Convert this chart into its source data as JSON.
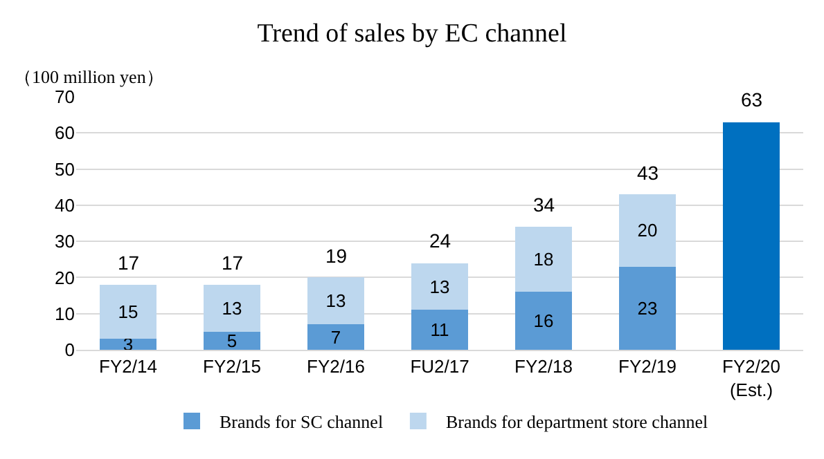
{
  "chart_data": {
    "type": "bar",
    "title": "Trend of sales by EC channel",
    "ylabel": "（100 million yen）",
    "categories": [
      "FY2/14",
      "FY2/15",
      "FY2/16",
      "FU2/17",
      "FY2/18",
      "FY2/19",
      "FY2/20\n(Est.)"
    ],
    "stacked": true,
    "series": [
      {
        "name": "Brands for SC channel",
        "color": "#5b9bd5",
        "colors": [
          null,
          null,
          null,
          null,
          null,
          null,
          "#0070c0"
        ],
        "values": [
          3,
          5,
          7,
          11,
          16,
          23,
          63
        ],
        "value_labels": [
          "3",
          "5",
          "7",
          "11",
          "16",
          "23",
          null
        ]
      },
      {
        "name": "Brands for department store channel",
        "color": "#bdd7ee",
        "values": [
          15,
          13,
          13,
          13,
          18,
          20,
          null
        ],
        "value_labels": [
          "15",
          "13",
          "13",
          "13",
          "18",
          "20",
          null
        ]
      }
    ],
    "totals": [
      "17",
      "17",
      "19",
      "24",
      "34",
      "43",
      "63"
    ],
    "ylim": [
      0,
      70
    ],
    "yticks": [
      0,
      10,
      20,
      30,
      40,
      50,
      60,
      70
    ],
    "grid": "y",
    "legend": "bottom"
  }
}
